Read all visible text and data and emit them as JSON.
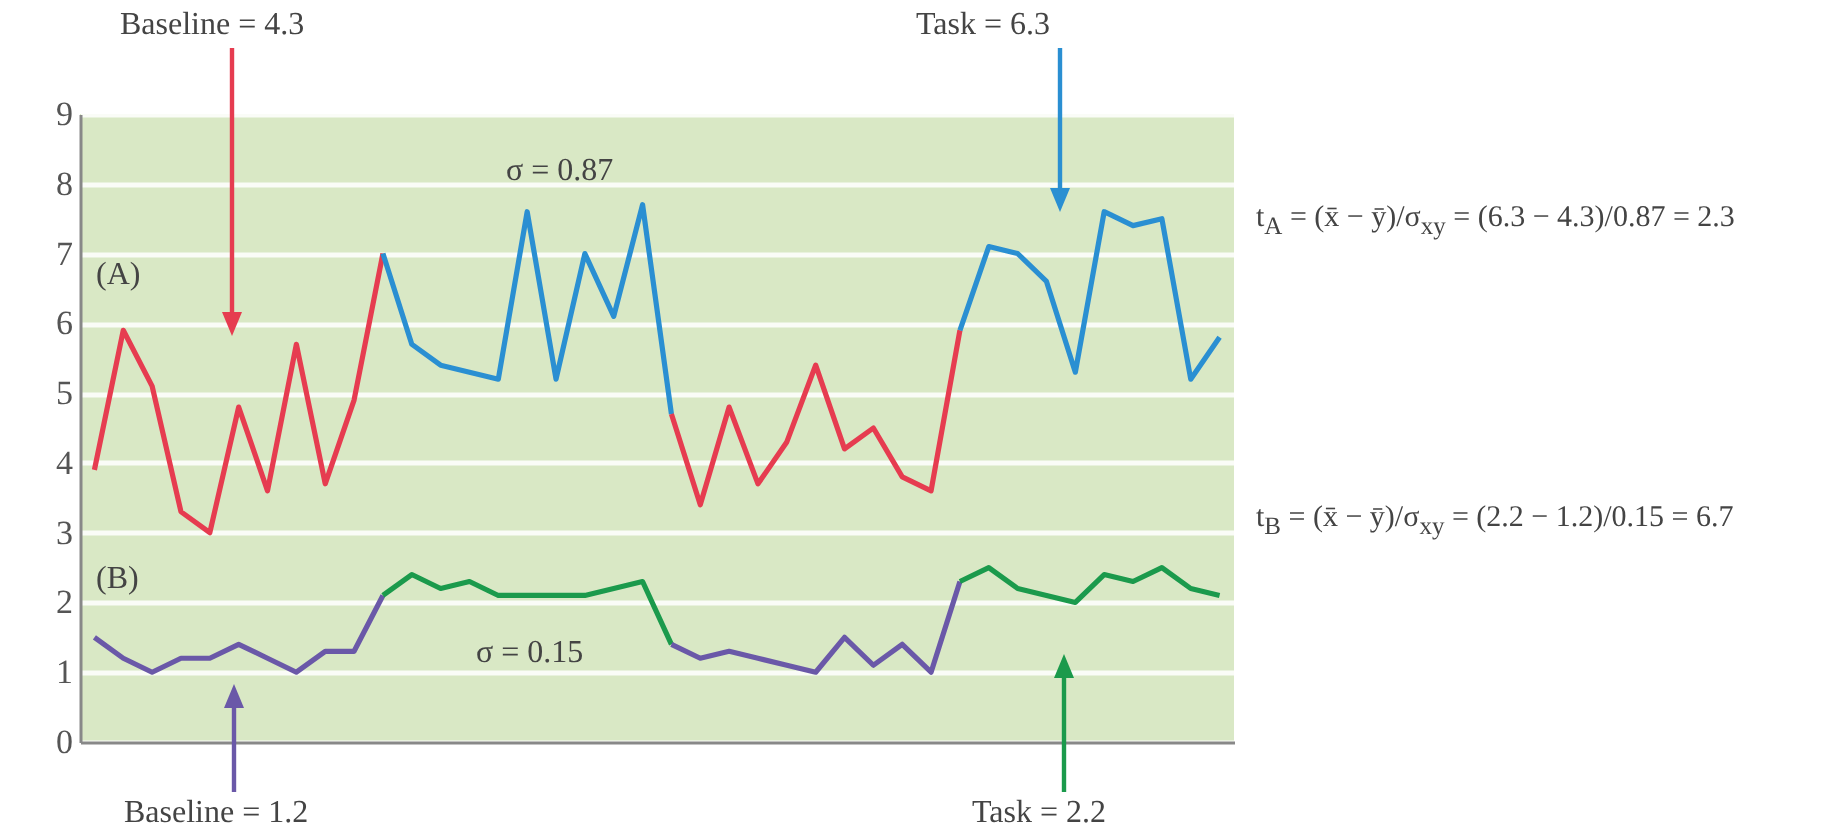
{
  "chart_data": {
    "type": "line",
    "categories": [
      null,
      null,
      null,
      null,
      null,
      null,
      null,
      null,
      null,
      null,
      null,
      null,
      null,
      null,
      null,
      null,
      null,
      null,
      null,
      null,
      null,
      null,
      null,
      null,
      null,
      null,
      null,
      null,
      null,
      null,
      null,
      null,
      null,
      null,
      null,
      null,
      null,
      null,
      null,
      null
    ],
    "series": [
      {
        "color": "#e63c50",
        "values": [
          3.9,
          5.9,
          5.1,
          3.3,
          3.0,
          4.8,
          3.6,
          5.7,
          3.7,
          4.9,
          7.0,
          null,
          null,
          null,
          null,
          null,
          null,
          null,
          null,
          null,
          null,
          null,
          null,
          null,
          null,
          null,
          null,
          null,
          null,
          null,
          null,
          null,
          null,
          null,
          null,
          null,
          null,
          null,
          null,
          null
        ]
      },
      {
        "color": "#2a8fd2",
        "values": [
          null,
          null,
          null,
          null,
          null,
          null,
          null,
          null,
          null,
          null,
          7.0,
          5.7,
          5.4,
          5.3,
          5.2,
          7.6,
          5.2,
          7.0,
          6.1,
          7.7,
          4.7,
          null,
          null,
          null,
          null,
          null,
          null,
          null,
          null,
          null,
          null,
          null,
          null,
          null,
          null,
          null,
          null,
          null,
          null,
          null
        ]
      },
      {
        "color": "#e63c50",
        "values": [
          null,
          null,
          null,
          null,
          null,
          null,
          null,
          null,
          null,
          null,
          null,
          null,
          null,
          null,
          null,
          null,
          null,
          null,
          null,
          null,
          4.7,
          3.4,
          4.8,
          3.7,
          4.3,
          5.4,
          4.2,
          4.5,
          3.8,
          3.6,
          5.9,
          null,
          null,
          null,
          null,
          null,
          null,
          null,
          null,
          null
        ]
      },
      {
        "color": "#2a8fd2",
        "values": [
          null,
          null,
          null,
          null,
          null,
          null,
          null,
          null,
          null,
          null,
          null,
          null,
          null,
          null,
          null,
          null,
          null,
          null,
          null,
          null,
          null,
          null,
          null,
          null,
          null,
          null,
          null,
          null,
          null,
          null,
          5.9,
          7.1,
          7.0,
          6.6,
          5.3,
          7.6,
          7.4,
          7.5,
          5.2,
          5.8
        ]
      },
      {
        "color": "#6a58a8",
        "values": [
          1.5,
          1.2,
          1.0,
          1.2,
          1.2,
          1.4,
          1.2,
          1.0,
          1.3,
          1.3,
          2.1,
          null,
          null,
          null,
          null,
          null,
          null,
          null,
          null,
          null,
          null,
          null,
          null,
          null,
          null,
          null,
          null,
          null,
          null,
          null,
          null,
          null,
          null,
          null,
          null,
          null,
          null,
          null,
          null,
          null
        ]
      },
      {
        "color": "#1b9a4c",
        "values": [
          null,
          null,
          null,
          null,
          null,
          null,
          null,
          null,
          null,
          null,
          2.1,
          2.4,
          2.2,
          2.3,
          2.1,
          2.1,
          2.1,
          2.1,
          2.2,
          2.3,
          1.4,
          null,
          null,
          null,
          null,
          null,
          null,
          null,
          null,
          null,
          null,
          null,
          null,
          null,
          null,
          null,
          null,
          null,
          null,
          null
        ]
      },
      {
        "color": "#6a58a8",
        "values": [
          null,
          null,
          null,
          null,
          null,
          null,
          null,
          null,
          null,
          null,
          null,
          null,
          null,
          null,
          null,
          null,
          null,
          null,
          null,
          null,
          1.4,
          1.2,
          1.3,
          1.2,
          1.1,
          1.0,
          1.5,
          1.1,
          1.4,
          1.0,
          2.3,
          null,
          null,
          null,
          null,
          null,
          null,
          null,
          null,
          null
        ]
      },
      {
        "color": "#1b9a4c",
        "values": [
          null,
          null,
          null,
          null,
          null,
          null,
          null,
          null,
          null,
          null,
          null,
          null,
          null,
          null,
          null,
          null,
          null,
          null,
          null,
          null,
          null,
          null,
          null,
          null,
          null,
          null,
          null,
          null,
          null,
          null,
          2.3,
          2.5,
          2.2,
          2.1,
          2.0,
          2.4,
          2.3,
          2.5,
          2.2,
          2.1
        ]
      }
    ],
    "ylim": [
      0,
      9
    ],
    "yticks": [
      0,
      1,
      2,
      3,
      4,
      5,
      6,
      7,
      8,
      9
    ],
    "grid": "y",
    "tick_labels": "y",
    "annotations": [
      "Baseline = 4.3",
      "Task = 6.3",
      "σ = 0.87",
      "(A)",
      "(B)",
      "σ = 0.15",
      "Baseline = 1.2",
      "Task = 2.2",
      "t$_{A}$ = (x̄ − ȳ)/σ$_{xy}$ = (6.3 − 4.3)/0.87 = 2.3",
      "t$_{B}$ = (x̄ − ȳ)/σ$_{xy}$ = (2.2 − 1.2)/0.15 = 6.7"
    ]
  }
}
